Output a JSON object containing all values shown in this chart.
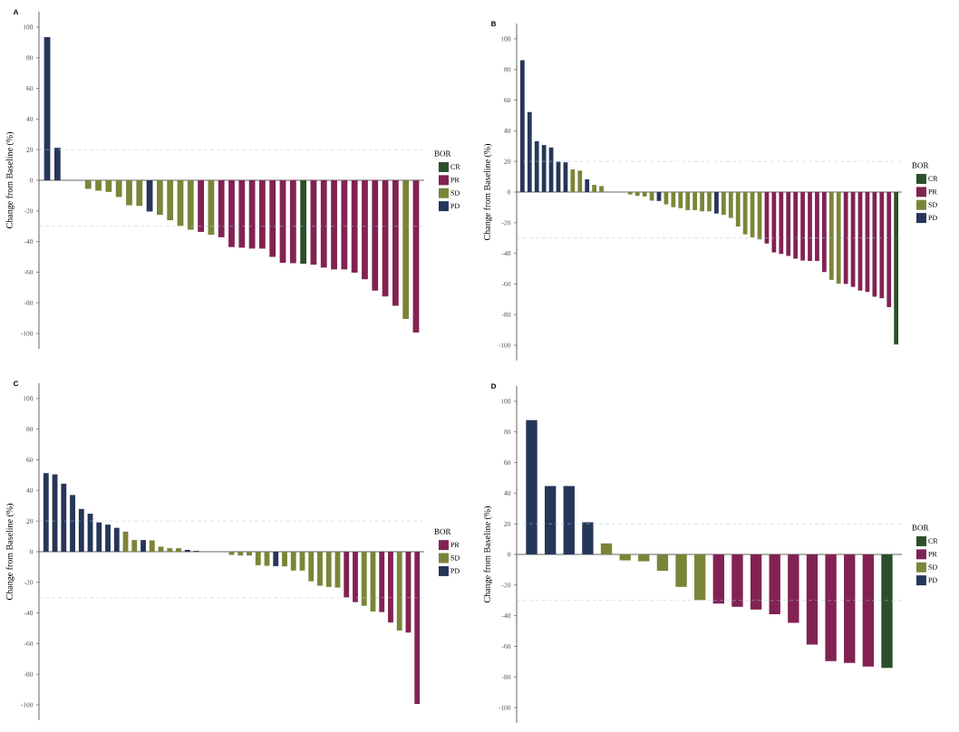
{
  "chart_data": [
    {
      "type": "bar",
      "title": "A",
      "ylabel": "Change from Baseline (%)",
      "legend_title": "BOR",
      "legend": "right",
      "tick_labels": "y",
      "categories": [
        null,
        null,
        null,
        null,
        null,
        null,
        null,
        null,
        null,
        null,
        null,
        null,
        null,
        null,
        null,
        null,
        null,
        null,
        null,
        null,
        null,
        null,
        null,
        null,
        null,
        null,
        null,
        null,
        null,
        null,
        null,
        null,
        null,
        null,
        null,
        null,
        null
      ],
      "series": [
        {
          "name": "CR",
          "color": "#2b4f2b",
          "values": [
            null,
            null,
            null,
            null,
            null,
            null,
            null,
            null,
            null,
            null,
            null,
            null,
            null,
            null,
            null,
            null,
            null,
            null,
            null,
            null,
            null,
            null,
            null,
            null,
            null,
            -54.5,
            null,
            null,
            null,
            null,
            null,
            null,
            null,
            null,
            null,
            null,
            null
          ]
        },
        {
          "name": "PR",
          "color": "#822252",
          "values": [
            null,
            null,
            null,
            null,
            null,
            null,
            null,
            null,
            null,
            null,
            null,
            null,
            null,
            null,
            null,
            -33.7,
            null,
            -37.2,
            -43.6,
            -44,
            -44.6,
            -44.6,
            -50,
            -53.9,
            -54.1,
            null,
            -55.1,
            -57,
            -58.2,
            -58.2,
            -60.3,
            -64.6,
            -72,
            -75.9,
            -81.9,
            null,
            -99.4
          ]
        },
        {
          "name": "SD",
          "color": "#7b8538",
          "values": [
            null,
            null,
            null,
            null,
            -5.6,
            -6.8,
            -7.6,
            -10.9,
            -16.3,
            -16.7,
            null,
            -22.6,
            -26.1,
            -29.8,
            -32.3,
            null,
            -35.6,
            null,
            null,
            null,
            null,
            null,
            null,
            null,
            null,
            null,
            null,
            null,
            null,
            null,
            null,
            null,
            null,
            null,
            null,
            -90.5,
            null
          ]
        },
        {
          "name": "PD",
          "color": "#263659",
          "values": [
            93.5,
            21.2,
            null,
            null,
            null,
            null,
            null,
            null,
            null,
            null,
            -20.4,
            null,
            null,
            null,
            null,
            null,
            null,
            null,
            null,
            null,
            null,
            null,
            null,
            null,
            null,
            null,
            null,
            null,
            null,
            null,
            null,
            null,
            null,
            null,
            null,
            null,
            null
          ]
        }
      ],
      "ylim": [
        -110,
        110
      ],
      "yticks": [
        -100,
        -80,
        -60,
        -40,
        -20,
        0,
        20,
        40,
        60,
        80,
        100
      ],
      "ref_lines": [
        {
          "axis": "y",
          "value": 20,
          "color": "#a9c9e4",
          "line_style": "dashed"
        },
        {
          "axis": "y",
          "value": -30,
          "color": "#a9c9e4",
          "line_style": "dashed"
        }
      ]
    },
    {
      "type": "bar",
      "title": "B",
      "ylabel": "Change from Baseline (%)",
      "legend_title": "BOR",
      "legend": "right",
      "tick_labels": "y",
      "categories": [
        null,
        null,
        null,
        null,
        null,
        null,
        null,
        null,
        null,
        null,
        null,
        null,
        null,
        null,
        null,
        null,
        null,
        null,
        null,
        null,
        null,
        null,
        null,
        null,
        null,
        null,
        null,
        null,
        null,
        null,
        null,
        null,
        null,
        null,
        null,
        null,
        null,
        null,
        null,
        null,
        null,
        null,
        null,
        null,
        null,
        null,
        null,
        null,
        null,
        null,
        null,
        null,
        null
      ],
      "series": [
        {
          "name": "CR",
          "color": "#2b4f2b",
          "values": [
            null,
            null,
            null,
            null,
            null,
            null,
            null,
            null,
            null,
            null,
            null,
            null,
            null,
            null,
            null,
            null,
            null,
            null,
            null,
            null,
            null,
            null,
            null,
            null,
            null,
            null,
            null,
            null,
            null,
            null,
            null,
            null,
            null,
            null,
            null,
            null,
            null,
            null,
            null,
            null,
            null,
            null,
            null,
            null,
            null,
            null,
            null,
            null,
            null,
            null,
            null,
            null,
            -99.5
          ]
        },
        {
          "name": "PR",
          "color": "#822252",
          "values": [
            null,
            null,
            null,
            null,
            null,
            null,
            null,
            null,
            null,
            null,
            null,
            null,
            null,
            null,
            null,
            null,
            null,
            null,
            null,
            null,
            null,
            null,
            null,
            null,
            null,
            null,
            null,
            null,
            null,
            null,
            null,
            null,
            null,
            null,
            -33.6,
            -39.4,
            -40.4,
            -41.7,
            -43.5,
            -44.7,
            -45,
            -45,
            -52.2,
            null,
            null,
            -60,
            -61.9,
            -64.3,
            -65.2,
            -68.3,
            -69.3,
            -75.1,
            null
          ]
        },
        {
          "name": "SD",
          "color": "#7b8538",
          "values": [
            null,
            null,
            null,
            null,
            null,
            null,
            null,
            14.8,
            14,
            null,
            4.7,
            3.9,
            null,
            null,
            null,
            -1.6,
            -2.5,
            -2.9,
            -5.6,
            null,
            -8,
            -9.9,
            -10.5,
            -11.8,
            -11.8,
            -12.6,
            -12.6,
            null,
            -14.8,
            -16.9,
            -22.5,
            -27.6,
            -29.5,
            -30.9,
            null,
            null,
            null,
            null,
            null,
            null,
            null,
            null,
            null,
            -57.3,
            -59.8,
            null,
            null,
            null,
            null,
            null,
            null,
            null,
            null
          ]
        },
        {
          "name": "PD",
          "color": "#263659",
          "values": [
            86,
            52.2,
            33.2,
            30.7,
            29.1,
            19.8,
            19.4,
            null,
            null,
            8.3,
            null,
            null,
            null,
            null,
            null,
            null,
            null,
            null,
            null,
            -5.8,
            null,
            null,
            null,
            null,
            null,
            null,
            null,
            -14,
            null,
            null,
            null,
            null,
            null,
            null,
            null,
            null,
            null,
            null,
            null,
            null,
            null,
            null,
            null,
            null,
            null,
            null,
            null,
            null,
            null,
            null,
            null,
            null,
            null
          ]
        }
      ],
      "ylim": [
        -110,
        110
      ],
      "yticks": [
        -100,
        -80,
        -60,
        -40,
        -20,
        0,
        20,
        40,
        60,
        80,
        100
      ],
      "ref_lines": [
        {
          "axis": "y",
          "value": 20,
          "color": "#a9c9e4",
          "line_style": "dashed"
        },
        {
          "axis": "y",
          "value": -30,
          "color": "#a9c9e4",
          "line_style": "dashed"
        }
      ]
    },
    {
      "type": "bar",
      "title": "C",
      "ylabel": "Change from Baseline (%)",
      "legend_title": "BOR",
      "legend": "right",
      "tick_labels": "y",
      "categories": [
        null,
        null,
        null,
        null,
        null,
        null,
        null,
        null,
        null,
        null,
        null,
        null,
        null,
        null,
        null,
        null,
        null,
        null,
        null,
        null,
        null,
        null,
        null,
        null,
        null,
        null,
        null,
        null,
        null,
        null,
        null,
        null,
        null,
        null,
        null,
        null,
        null,
        null,
        null,
        null,
        null,
        null,
        null
      ],
      "series": [
        {
          "name": "PR",
          "color": "#822252",
          "values": [
            null,
            null,
            null,
            null,
            null,
            null,
            null,
            null,
            null,
            null,
            null,
            null,
            null,
            null,
            null,
            null,
            null,
            null,
            null,
            null,
            null,
            null,
            null,
            null,
            null,
            null,
            null,
            null,
            null,
            null,
            null,
            null,
            null,
            null,
            -29.8,
            -32.9,
            null,
            null,
            -39.4,
            -46.2,
            null,
            -52.8,
            -99.4
          ]
        },
        {
          "name": "SD",
          "color": "#7b8538",
          "values": [
            null,
            null,
            null,
            null,
            null,
            null,
            null,
            null,
            null,
            13.1,
            7.6,
            null,
            7.4,
            3.3,
            2.3,
            2.3,
            null,
            null,
            null,
            null,
            null,
            -2.1,
            -2.5,
            -2.5,
            -8.8,
            -9.2,
            null,
            -9.6,
            -12.3,
            -12.3,
            -19.3,
            -22.2,
            -23,
            -23.4,
            null,
            null,
            -35.3,
            -39,
            null,
            null,
            -51.5,
            null,
            null
          ]
        },
        {
          "name": "PD",
          "color": "#263659",
          "values": [
            51.3,
            50.5,
            44.4,
            37,
            27.9,
            24.8,
            19.1,
            17.7,
            15.6,
            null,
            null,
            7.6,
            null,
            null,
            null,
            null,
            1.2,
            0.5,
            null,
            null,
            null,
            null,
            null,
            null,
            null,
            null,
            -9.4,
            null,
            null,
            null,
            null,
            null,
            null,
            null,
            null,
            null,
            null,
            null,
            null,
            null,
            null,
            null,
            null
          ]
        }
      ],
      "ylim": [
        -110,
        110
      ],
      "yticks": [
        -100,
        -80,
        -60,
        -40,
        -20,
        0,
        20,
        40,
        60,
        80,
        100
      ],
      "ref_lines": [
        {
          "axis": "y",
          "value": 20,
          "color": "#a9c9e4",
          "line_style": "dashed"
        },
        {
          "axis": "y",
          "value": -30,
          "color": "#a9c9e4",
          "line_style": "dashed"
        }
      ]
    },
    {
      "type": "bar",
      "title": "D",
      "ylabel": "Change from Baseline (%)",
      "legend_title": "BOR",
      "legend": "right",
      "tick_labels": "y",
      "categories": [
        null,
        null,
        null,
        null,
        null,
        null,
        null,
        null,
        null,
        null,
        null,
        null,
        null,
        null,
        null,
        null,
        null,
        null,
        null,
        null
      ],
      "series": [
        {
          "name": "CR",
          "color": "#2b4f2b",
          "values": [
            null,
            null,
            null,
            null,
            null,
            null,
            null,
            null,
            null,
            null,
            null,
            null,
            null,
            null,
            null,
            null,
            null,
            null,
            null,
            -74.1
          ]
        },
        {
          "name": "PR",
          "color": "#822252",
          "values": [
            null,
            null,
            null,
            null,
            null,
            null,
            null,
            null,
            null,
            null,
            -32.1,
            -34.2,
            -36,
            -39.1,
            -44.7,
            -58.8,
            -69.6,
            -70.8,
            -73.2,
            null
          ]
        },
        {
          "name": "SD",
          "color": "#7b8538",
          "values": [
            null,
            null,
            null,
            null,
            7.2,
            -3.9,
            -4.5,
            -10.7,
            -21.2,
            -29.8,
            null,
            null,
            null,
            null,
            null,
            null,
            null,
            null,
            null,
            null
          ]
        },
        {
          "name": "PD",
          "color": "#263659",
          "values": [
            87.7,
            44.6,
            44.6,
            21,
            null,
            null,
            null,
            null,
            null,
            null,
            null,
            null,
            null,
            null,
            null,
            null,
            null,
            null,
            null,
            null
          ]
        }
      ],
      "ylim": [
        -110,
        110
      ],
      "yticks": [
        -100,
        -80,
        -60,
        -40,
        -20,
        0,
        20,
        40,
        60,
        80,
        100
      ],
      "ref_lines": [
        {
          "axis": "y",
          "value": 20,
          "color": "#a9c9e4",
          "line_style": "dashed"
        },
        {
          "axis": "y",
          "value": -30,
          "color": "#a9c9e4",
          "line_style": "dashed"
        }
      ]
    }
  ]
}
